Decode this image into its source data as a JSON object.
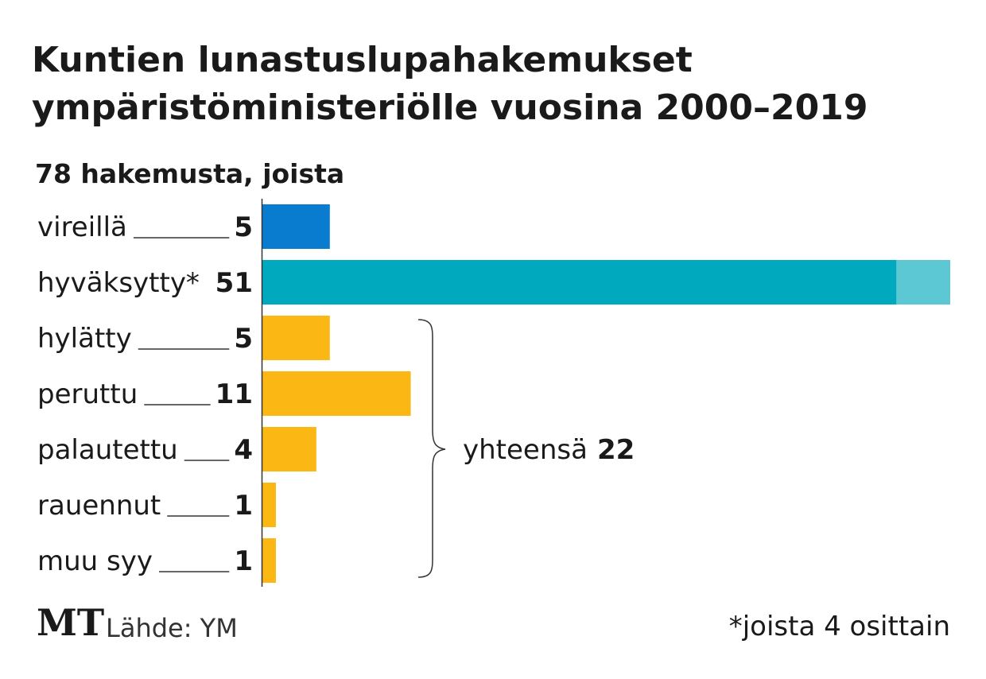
{
  "chart_data": {
    "type": "bar",
    "orientation": "horizontal",
    "title": "Kuntien lunastuslupahakemukset ympäristöministeriölle vuosina 2000–2019",
    "title_lines": [
      "Kuntien lunastuslupahakemukset",
      "ympäristöministeriölle vuosina 2000–2019"
    ],
    "subtitle": "78 hakemusta, joista",
    "categories": [
      "vireillä",
      "hyväksytty*",
      "hylätty",
      "peruttu",
      "palautettu",
      "rauennut",
      "muu syy"
    ],
    "values": [
      5,
      51,
      5,
      11,
      4,
      1,
      1
    ],
    "value_labels": [
      "5",
      "51",
      "5",
      "11",
      "4",
      "1",
      "1"
    ],
    "bar_colors": [
      "#0a7ccf",
      "#00a9bd",
      "#fbb814",
      "#fbb814",
      "#fbb814",
      "#fbb814",
      "#fbb814"
    ],
    "partial_segment": {
      "category": "hyväksytty*",
      "value": 4,
      "color": "#5bc8d4"
    },
    "group": {
      "label": "yhteensä",
      "value": "22",
      "categories": [
        "hylätty",
        "peruttu",
        "palautettu",
        "rauennut",
        "muu syy"
      ]
    },
    "xlim": [
      0,
      51
    ],
    "grid": false,
    "legend": "none"
  },
  "logo": "MT",
  "source": "Lähde: YM",
  "footnote": "*joista 4 osittain"
}
